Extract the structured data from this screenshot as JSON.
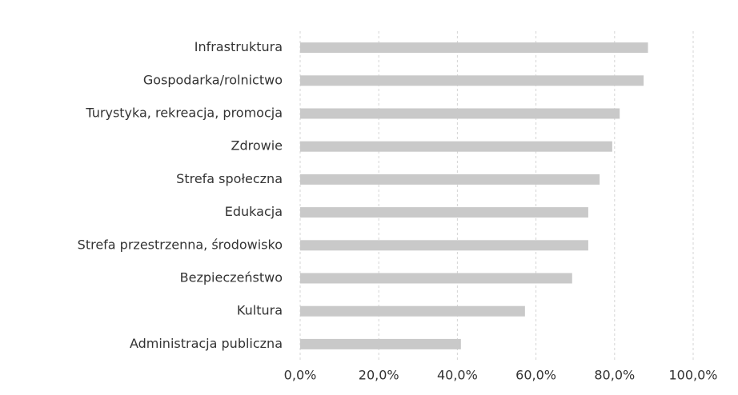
{
  "chart_data": {
    "type": "bar",
    "orientation": "horizontal",
    "categories": [
      "Infrastruktura",
      "Gospodarka/rolnictwo",
      "Turystyka, rekreacja, promocja",
      "Zdrowie",
      "Strefa społeczna",
      "Edukacja",
      "Strefa przestrzenna, środowisko",
      "Bezpieczeństwo",
      "Kultura",
      "Administracja publiczna"
    ],
    "values": [
      88.5,
      87.4,
      81.3,
      79.4,
      76.2,
      73.3,
      73.3,
      69.2,
      57.2,
      40.9
    ],
    "color": "#c9c9c9",
    "xlim": [
      0,
      100
    ],
    "xticks": [
      {
        "value": 0,
        "label": "0,0%"
      },
      {
        "value": 20,
        "label": "20,0%"
      },
      {
        "value": 40,
        "label": "40,0%"
      },
      {
        "value": 60,
        "label": "60,0%"
      },
      {
        "value": 80,
        "label": "80,0%"
      },
      {
        "value": 100,
        "label": "100,0%"
      }
    ],
    "grid": true
  }
}
